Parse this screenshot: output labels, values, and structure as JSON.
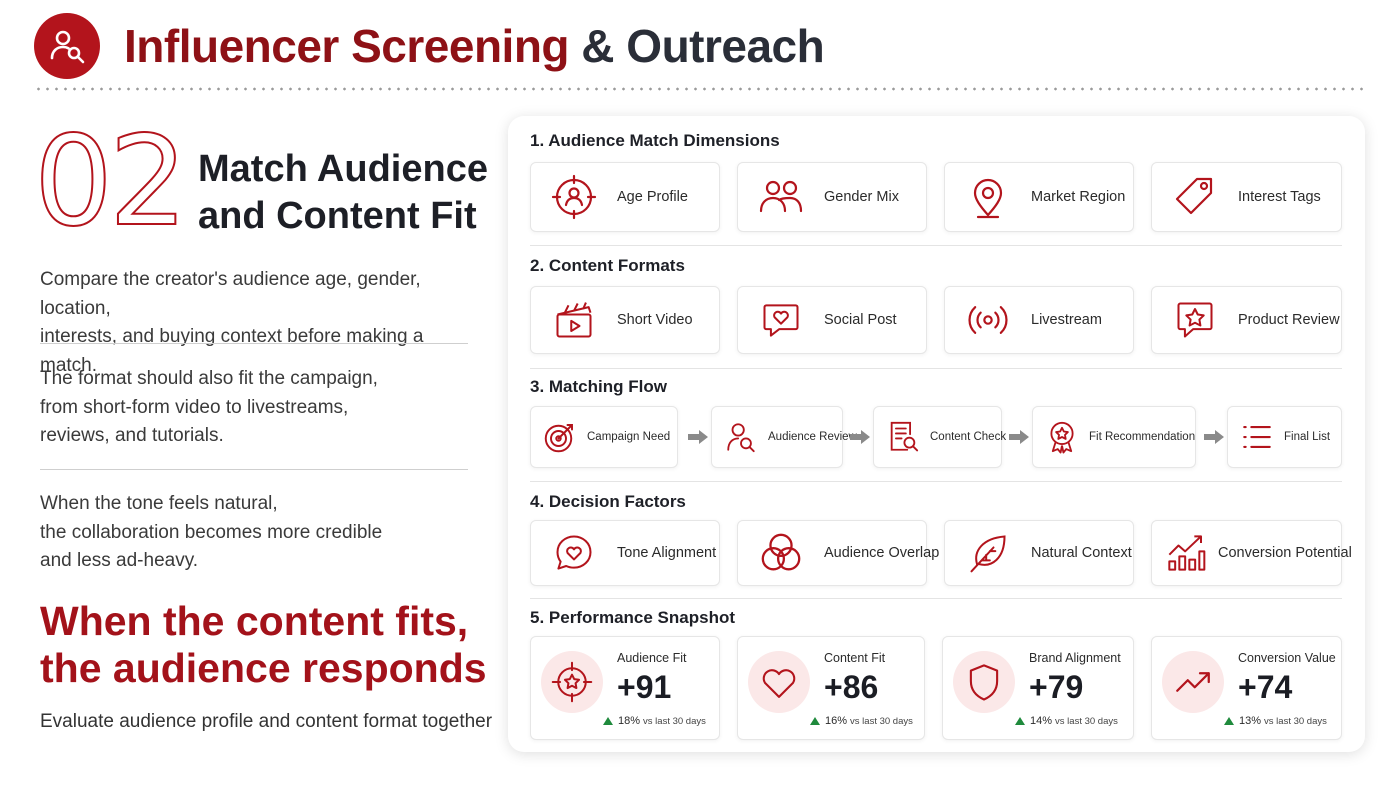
{
  "header": {
    "title_part1": "Influencer Screening",
    "title_part2": " & Outreach",
    "logo_icon": "person-search-icon",
    "accent": "#b3141c"
  },
  "left": {
    "number": "02",
    "subtitle_line1": "Match Audience",
    "subtitle_line2": "and Content Fit",
    "paragraphs": [
      [
        "Compare the creator's audience age, gender, location,",
        "interests, and buying context before making a match."
      ],
      [
        "The format should also fit the campaign,",
        "from short-form video to livestreams,",
        "reviews, and tutorials."
      ],
      [
        "When the tone feels natural,",
        "the collaboration becomes more credible",
        "and less ad-heavy."
      ]
    ],
    "callout_line1": "When the content fits,",
    "callout_line2": "the audience responds",
    "footer": "Evaluate audience profile and content format together"
  },
  "panel": {
    "sections": [
      {
        "title": "1.  Audience Match Dimensions",
        "items": [
          {
            "label": "Age Profile",
            "icon": "target-person-icon"
          },
          {
            "label": "Gender Mix",
            "icon": "two-people-icon"
          },
          {
            "label": "Market Region",
            "icon": "location-pin-icon"
          },
          {
            "label": "Interest Tags",
            "icon": "tag-icon"
          }
        ]
      },
      {
        "title": "2.  Content Formats",
        "items": [
          {
            "label": "Short Video",
            "icon": "clapperboard-icon"
          },
          {
            "label": "Social Post",
            "icon": "heart-chat-icon"
          },
          {
            "label": "Livestream",
            "icon": "broadcast-icon"
          },
          {
            "label": "Product Review",
            "icon": "star-chat-icon"
          }
        ]
      },
      {
        "title": "3.  Matching Flow",
        "items": [
          {
            "label": "Campaign Need",
            "icon": "bullseye-icon"
          },
          {
            "label": "Audience Review",
            "icon": "person-search-icon"
          },
          {
            "label": "Content Check",
            "icon": "document-search-icon"
          },
          {
            "label": "Fit Recommendation",
            "icon": "award-icon"
          },
          {
            "label": "Final List",
            "icon": "list-icon"
          }
        ]
      },
      {
        "title": "4.  Decision Factors",
        "items": [
          {
            "label": "Tone Alignment",
            "icon": "heart-chat-icon"
          },
          {
            "label": "Audience Overlap",
            "icon": "venn-icon"
          },
          {
            "label": "Natural Context",
            "icon": "leaf-icon"
          },
          {
            "label": "Conversion Potential",
            "icon": "growth-chart-icon"
          }
        ]
      },
      {
        "title": "5.  Performance Snapshot"
      }
    ],
    "metrics": [
      {
        "name": "Audience Fit",
        "value": "+91",
        "pct": "18%",
        "vs": "vs last 30 days",
        "icon": "target-star-icon"
      },
      {
        "name": "Content Fit",
        "value": "+86",
        "pct": "16%",
        "vs": "vs last 30 days",
        "icon": "heart-icon"
      },
      {
        "name": "Brand Alignment",
        "value": "+79",
        "pct": "14%",
        "vs": "vs last 30 days",
        "icon": "shield-icon"
      },
      {
        "name": "Conversion Value",
        "value": "+74",
        "pct": "13%",
        "vs": "vs last 30 days",
        "icon": "trend-up-icon"
      }
    ]
  }
}
